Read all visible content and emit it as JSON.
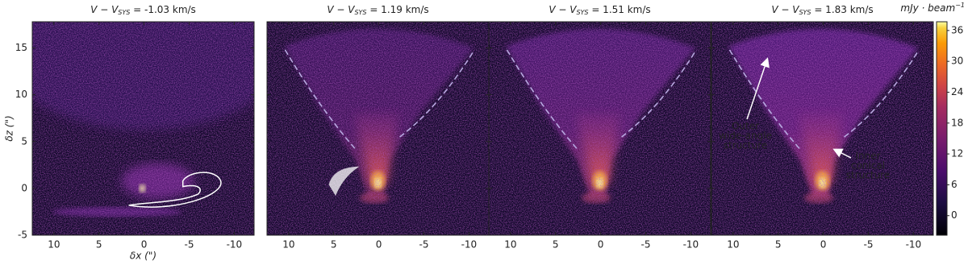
{
  "chart_data": {
    "type": "image",
    "xlabel": "δx (\")",
    "ylabel": "δz (\")",
    "xlim": [
      12.4,
      -12.2
    ],
    "ylim": [
      -5,
      17.8
    ],
    "xticks": [
      10,
      5,
      0,
      -5,
      -10
    ],
    "yticks": [
      -5,
      0,
      5,
      10,
      15
    ],
    "panels": [
      {
        "title": [
          "V − V",
          "SYS",
          " = -1.03 km/s"
        ]
      },
      {
        "title": [
          "V − V",
          "SYS",
          " = 1.19 km/s"
        ]
      },
      {
        "title": [
          "V − V",
          "SYS",
          " = 1.51 km/s"
        ]
      },
      {
        "title": [
          "V − V",
          "SYS",
          " = 1.83 km/s"
        ]
      }
    ],
    "colorbar": {
      "label": [
        "mJy · beam",
        "−1"
      ],
      "clim": [
        -3.8,
        37.7
      ],
      "ticks": [
        0,
        6,
        12,
        18,
        24,
        30,
        36
      ],
      "colormap": "inferno"
    },
    "annotations": [
      {
        "lines": [
          "Outer",
          "wide-angle",
          "structure"
        ]
      },
      {
        "lines": [
          "Inner",
          "conical",
          "structure"
        ]
      }
    ]
  }
}
